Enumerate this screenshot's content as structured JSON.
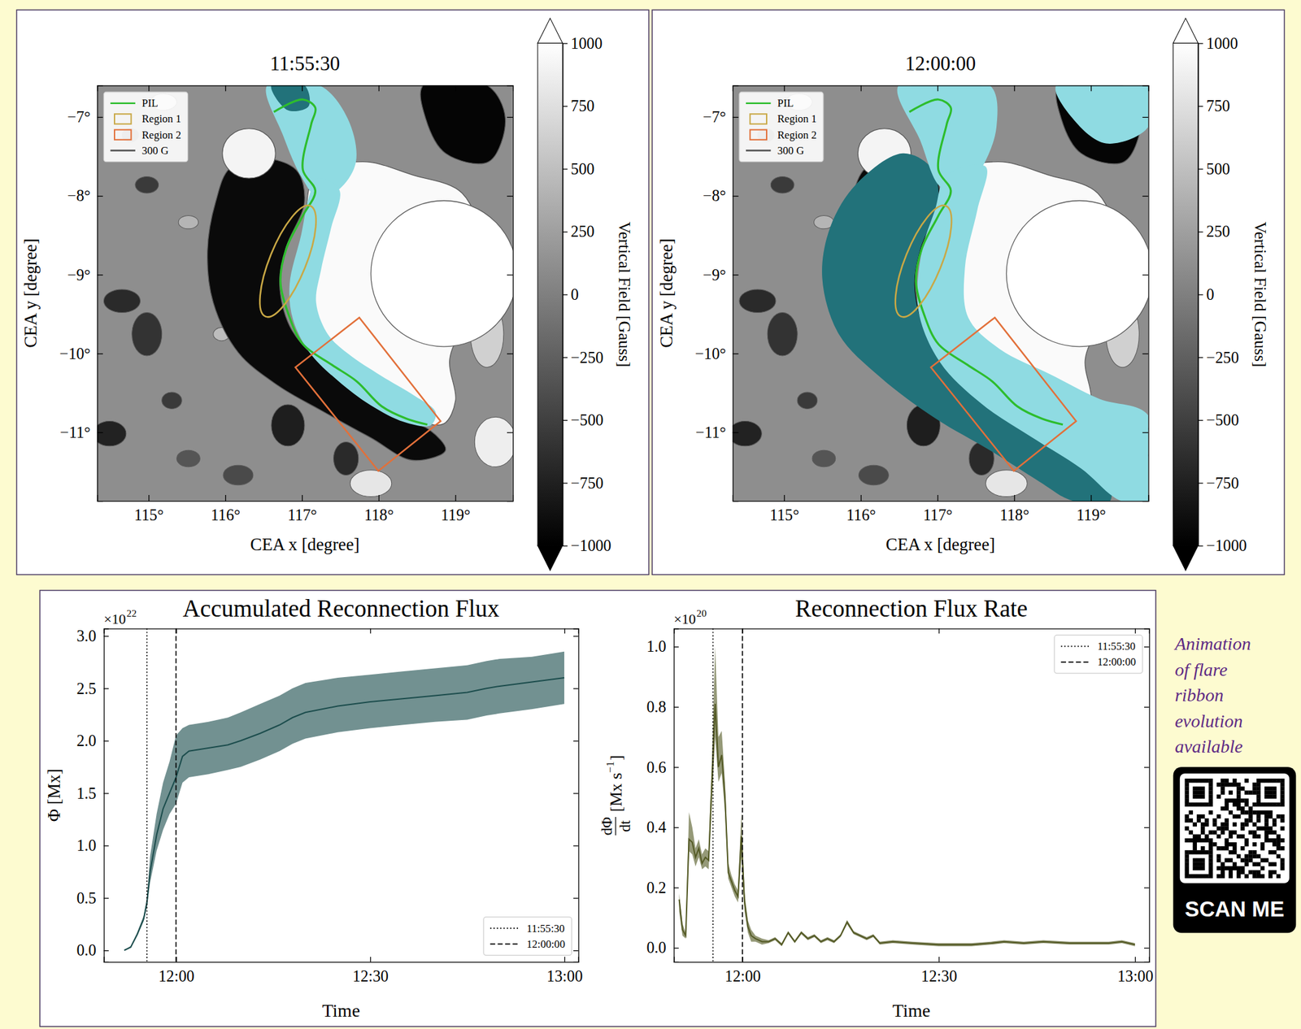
{
  "chart_data": [
    {
      "type": "image",
      "title": "11:55:30",
      "xlabel": "CEA x [degree]",
      "ylabel": "CEA y [degree]",
      "xlim": [
        114.33,
        119.75
      ],
      "ylim": [
        -11.87,
        -6.6
      ],
      "xticks": [
        {
          "value": 115,
          "label": "115°"
        },
        {
          "value": 116,
          "label": "116°"
        },
        {
          "value": 117,
          "label": "117°"
        },
        {
          "value": 118,
          "label": "118°"
        },
        {
          "value": 119,
          "label": "119°"
        }
      ],
      "yticks": [
        {
          "value": -7,
          "label": "−7°"
        },
        {
          "value": -8,
          "label": "−8°"
        },
        {
          "value": -9,
          "label": "−9°"
        },
        {
          "value": -10,
          "label": "−10°"
        },
        {
          "value": -11,
          "label": "−11°"
        }
      ],
      "legend": "upper left",
      "legend_entries": [
        {
          "name": "PIL",
          "color": "#2dbd2d",
          "line_style": "solid"
        },
        {
          "name": "Region 1",
          "color": "#c9a845",
          "marker": "square"
        },
        {
          "name": "Region 2",
          "color": "#e2703a",
          "marker": "square"
        },
        {
          "name": "300 G",
          "color": "#5a5a5a",
          "line_style": "solid"
        }
      ],
      "colorbar": {
        "label": "Vertical Field [Gauss]",
        "range": [
          -1000,
          1000
        ],
        "ticks": [
          {
            "value": -1000,
            "label": "−1000"
          },
          {
            "value": -750,
            "label": "−750"
          },
          {
            "value": -500,
            "label": "−500"
          },
          {
            "value": -250,
            "label": "−250"
          },
          0,
          250,
          500,
          750,
          1000
        ]
      }
    },
    {
      "type": "image",
      "title": "12:00:00",
      "xlabel": "CEA x [degree]",
      "ylabel": "CEA y [degree]",
      "xlim": [
        114.33,
        119.75
      ],
      "ylim": [
        -11.87,
        -6.6
      ],
      "xticks": [
        {
          "value": 115,
          "label": "115°"
        },
        {
          "value": 116,
          "label": "116°"
        },
        {
          "value": 117,
          "label": "117°"
        },
        {
          "value": 118,
          "label": "118°"
        },
        {
          "value": 119,
          "label": "119°"
        }
      ],
      "yticks": [
        {
          "value": -7,
          "label": "−7°"
        },
        {
          "value": -8,
          "label": "−8°"
        },
        {
          "value": -9,
          "label": "−9°"
        },
        {
          "value": -10,
          "label": "−10°"
        },
        {
          "value": -11,
          "label": "−11°"
        }
      ],
      "legend": "upper left",
      "legend_entries": [
        {
          "name": "PIL",
          "color": "#2dbd2d",
          "line_style": "solid"
        },
        {
          "name": "Region 1",
          "color": "#c9a845",
          "marker": "square"
        },
        {
          "name": "Region 2",
          "color": "#e2703a",
          "marker": "square"
        },
        {
          "name": "300 G",
          "color": "#5a5a5a",
          "line_style": "solid"
        }
      ],
      "colorbar": {
        "label": "Vertical Field [Gauss]",
        "range": [
          -1000,
          1000
        ],
        "ticks": [
          {
            "value": -1000,
            "label": "−1000"
          },
          {
            "value": -750,
            "label": "−750"
          },
          {
            "value": -500,
            "label": "−500"
          },
          {
            "value": -250,
            "label": "−250"
          },
          0,
          250,
          500,
          750,
          1000
        ]
      }
    },
    {
      "type": "line",
      "title": "Accumulated Reconnection Flux",
      "xlabel": "Time",
      "ylabel": "Φ [Mx]",
      "y_multiplier": {
        "base": "×10",
        "exponent": "22"
      },
      "x": [
        "11:52:00",
        "11:53:00",
        "11:54:00",
        "11:55:00",
        "11:55:30",
        "11:56:00",
        "11:57:00",
        "11:58:00",
        "11:59:00",
        "12:00:00",
        "12:01:00",
        "12:02:00",
        "12:05:00",
        "12:08:00",
        "12:10:00",
        "12:13:00",
        "12:16:00",
        "12:18:00",
        "12:20:00",
        "12:25:00",
        "12:30:00",
        "12:35:00",
        "12:40:00",
        "12:45:00",
        "12:48:00",
        "12:50:00",
        "12:55:00",
        "13:00:00"
      ],
      "xlim": [
        "11:48:50",
        "13:02:10"
      ],
      "xticks": [
        {
          "value": "12:00:00",
          "label": "12:00"
        },
        {
          "value": "12:30:00",
          "label": "12:30"
        },
        {
          "value": "13:00:00",
          "label": "13:00"
        }
      ],
      "ylim": [
        -0.11,
        3.07
      ],
      "yticks": [
        {
          "value": 0,
          "label": "0.0"
        },
        0.5,
        {
          "value": 1,
          "label": "1.0"
        },
        1.5,
        {
          "value": 2,
          "label": "2.0"
        },
        2.5,
        {
          "value": 3,
          "label": "3.0"
        }
      ],
      "series": [
        {
          "color": "#1c4d4d",
          "values": [
            0,
            0.03,
            0.15,
            0.3,
            0.45,
            0.75,
            1.1,
            1.35,
            1.5,
            1.65,
            1.85,
            1.9,
            1.93,
            1.96,
            2.0,
            2.07,
            2.15,
            2.22,
            2.27,
            2.33,
            2.37,
            2.4,
            2.43,
            2.46,
            2.5,
            2.52,
            2.56,
            2.6
          ],
          "lower": [
            0,
            0.03,
            0.14,
            0.28,
            0.42,
            0.65,
            0.95,
            1.15,
            1.3,
            1.4,
            1.6,
            1.65,
            1.68,
            1.72,
            1.75,
            1.82,
            1.9,
            1.97,
            2.02,
            2.08,
            2.12,
            2.15,
            2.18,
            2.2,
            2.24,
            2.26,
            2.3,
            2.35
          ],
          "upper": [
            0,
            0.04,
            0.17,
            0.33,
            0.5,
            0.9,
            1.3,
            1.6,
            1.8,
            2.05,
            2.12,
            2.15,
            2.18,
            2.22,
            2.27,
            2.35,
            2.43,
            2.5,
            2.55,
            2.6,
            2.63,
            2.66,
            2.69,
            2.72,
            2.76,
            2.78,
            2.8,
            2.85
          ]
        }
      ],
      "vlines": [
        {
          "x": "11:55:30",
          "name": "11:55:30",
          "line_style": "dotted"
        },
        {
          "x": "12:00:00",
          "name": "12:00:00",
          "line_style": "dashed"
        }
      ],
      "legend": "lower right"
    },
    {
      "type": "line",
      "title": "Reconnection Flux Rate",
      "xlabel": "Time",
      "ylabel": {
        "numerator": "dΦ",
        "denominator": "dt",
        "unit": "[Mx s",
        "exponent": "−1",
        "close": "]"
      },
      "y_multiplier": {
        "base": "×10",
        "exponent": "20"
      },
      "x": [
        "11:50:20",
        "11:50:50",
        "11:51:20",
        "11:51:50",
        "11:52:20",
        "11:52:50",
        "11:53:20",
        "11:53:50",
        "11:54:20",
        "11:54:50",
        "11:55:20",
        "11:55:50",
        "11:56:20",
        "11:56:50",
        "11:57:20",
        "11:57:50",
        "11:58:20",
        "11:58:50",
        "11:59:20",
        "11:59:50",
        "12:00:20",
        "12:00:50",
        "12:01:20",
        "12:02:00",
        "12:03:00",
        "12:04:00",
        "12:05:00",
        "12:06:00",
        "12:07:00",
        "12:08:00",
        "12:09:00",
        "12:10:00",
        "12:11:00",
        "12:12:00",
        "12:13:00",
        "12:14:00",
        "12:15:00",
        "12:16:00",
        "12:17:00",
        "12:18:00",
        "12:19:00",
        "12:20:00",
        "12:21:00",
        "12:23:00",
        "12:26:00",
        "12:30:00",
        "12:35:00",
        "12:38:00",
        "12:40:00",
        "12:43:00",
        "12:46:00",
        "12:50:00",
        "12:53:00",
        "12:56:00",
        "12:58:00",
        "13:00:00"
      ],
      "xlim": [
        "11:49:30",
        "13:02:10"
      ],
      "xticks": [
        {
          "value": "12:00:00",
          "label": "12:00"
        },
        {
          "value": "12:30:00",
          "label": "12:30"
        },
        {
          "value": "13:00:00",
          "label": "13:00"
        }
      ],
      "ylim": [
        -0.047,
        1.06
      ],
      "yticks": [
        {
          "value": 0,
          "label": "0.0"
        },
        0.2,
        0.4,
        0.6,
        0.8,
        {
          "value": 1,
          "label": "1.0"
        }
      ],
      "series": [
        {
          "color": "#545a25",
          "values": [
            0.16,
            0.06,
            0.04,
            0.36,
            0.35,
            0.3,
            0.33,
            0.28,
            0.3,
            0.29,
            0.55,
            0.81,
            0.6,
            0.64,
            0.5,
            0.25,
            0.22,
            0.19,
            0.17,
            0.37,
            0.15,
            0.07,
            0.04,
            0.03,
            0.02,
            0.02,
            0.03,
            0.01,
            0.05,
            0.02,
            0.05,
            0.03,
            0.04,
            0.02,
            0.03,
            0.02,
            0.04,
            0.085,
            0.05,
            0.04,
            0.03,
            0.04,
            0.015,
            0.02,
            0.015,
            0.01,
            0.01,
            0.015,
            0.02,
            0.015,
            0.02,
            0.015,
            0.015,
            0.015,
            0.02,
            0.01
          ],
          "lower": [
            0.12,
            0.04,
            0.03,
            0.32,
            0.31,
            0.27,
            0.3,
            0.26,
            0.27,
            0.26,
            0.48,
            0.7,
            0.55,
            0.58,
            0.45,
            0.23,
            0.2,
            0.17,
            0.15,
            0.3,
            0.12,
            0.05,
            0.02,
            0.02,
            0.01,
            0.015,
            0.025,
            0.005,
            0.045,
            0.015,
            0.045,
            0.025,
            0.035,
            0.015,
            0.025,
            0.015,
            0.035,
            0.078,
            0.045,
            0.035,
            0.025,
            0.035,
            0.01,
            0.015,
            0.01,
            0.005,
            0.005,
            0.01,
            0.015,
            0.01,
            0.015,
            0.01,
            0.01,
            0.01,
            0.015,
            0.005
          ],
          "upper": [
            0.18,
            0.08,
            0.05,
            0.45,
            0.4,
            0.33,
            0.36,
            0.31,
            0.33,
            0.32,
            0.62,
            1.0,
            0.7,
            0.72,
            0.55,
            0.28,
            0.24,
            0.21,
            0.19,
            0.45,
            0.18,
            0.09,
            0.06,
            0.04,
            0.03,
            0.025,
            0.035,
            0.015,
            0.055,
            0.025,
            0.055,
            0.035,
            0.045,
            0.025,
            0.035,
            0.025,
            0.045,
            0.092,
            0.055,
            0.045,
            0.035,
            0.045,
            0.02,
            0.025,
            0.02,
            0.015,
            0.015,
            0.02,
            0.025,
            0.02,
            0.025,
            0.02,
            0.02,
            0.02,
            0.025,
            0.015
          ]
        }
      ],
      "vlines": [
        {
          "x": "11:55:30",
          "name": "11:55:30",
          "line_style": "dotted"
        },
        {
          "x": "12:00:00",
          "name": "12:00:00",
          "line_style": "dashed"
        }
      ],
      "legend": "upper right"
    }
  ],
  "qr_panel": {
    "caption": "Animation of flare ribbon evolution available",
    "button": "SCAN ME"
  }
}
